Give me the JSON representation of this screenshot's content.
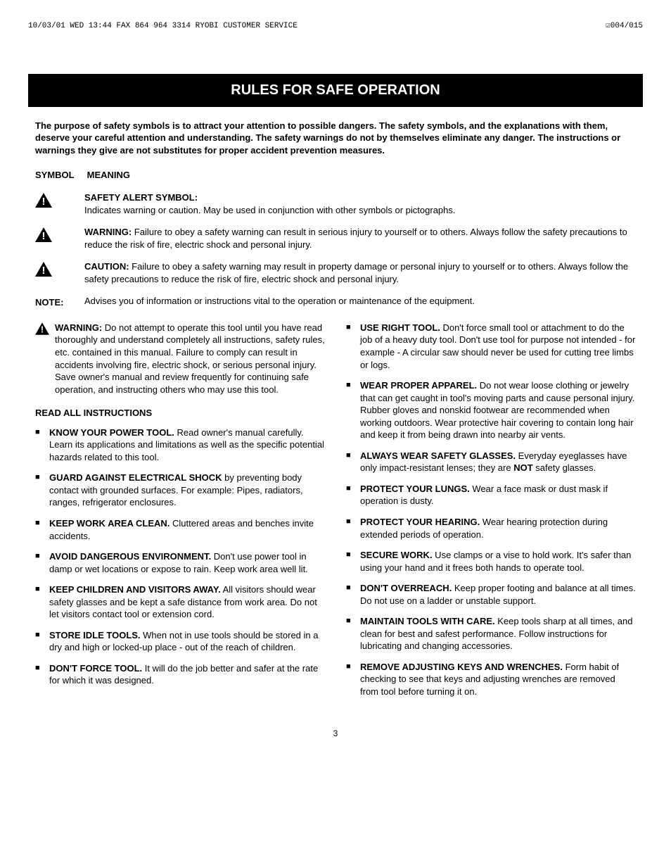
{
  "fax": {
    "left": "10/03/01 WED 13:44    FAX 864 964 3314 RYOBI CUSTOMER SERVICE",
    "right": "☑004/015"
  },
  "title": "RULES FOR SAFE OPERATION",
  "intro": "The purpose of safety symbols is to attract your attention to possible dangers. The safety symbols, and the explanations with them, deserve your careful attention and understanding. The safety warnings do not by themselves eliminate any danger. The instructions or warnings they give are not substitutes for proper accident prevention measures.",
  "headers": {
    "symbol": "SYMBOL",
    "meaning": "MEANING"
  },
  "symbols": {
    "alert_title": "SAFETY ALERT SYMBOL:",
    "alert_body": "Indicates warning or caution. May be used in conjunction with other symbols or pictographs.",
    "warning_label": "WARNING:",
    "warning_body": " Failure to obey a safety warning can result in serious injury to yourself or to others. Always follow the safety precautions to reduce the risk of fire, electric shock and personal injury.",
    "caution_label": "CAUTION:",
    "caution_body": " Failure to obey a safety warning may result in property damage or personal injury to yourself or to others. Always follow the safety precautions to reduce the risk of fire, electric shock and personal injury.",
    "note_label": "NOTE:",
    "note_body": "Advises you of information or instructions vital to the operation or maintenance of the equipment."
  },
  "top_warning": {
    "label": "WARNING:",
    "body": " Do not attempt to operate this tool until you have read thoroughly and understand completely all instructions, safety rules, etc. contained in this manual. Failure to comply can result in accidents involving fire, electric shock, or serious personal injury. Save owner's manual and review frequently for continuing safe operation, and instructing others who may use this tool."
  },
  "read_all": "READ ALL INSTRUCTIONS",
  "left_items": [
    {
      "t": "KNOW YOUR POWER TOOL.",
      "b": " Read owner's manual carefully. Learn its applications and limitations as well as the specific potential hazards related to this tool."
    },
    {
      "t": "GUARD AGAINST ELECTRICAL SHOCK",
      "b": " by preventing body contact with grounded surfaces. For example: Pipes, radiators, ranges, refrigerator enclosures."
    },
    {
      "t": "KEEP WORK AREA CLEAN.",
      "b": " Cluttered areas and benches invite accidents."
    },
    {
      "t": "AVOID DANGEROUS ENVIRONMENT.",
      "b": " Don't use power tool in damp or wet locations or expose to rain. Keep work area well lit."
    },
    {
      "t": "KEEP CHILDREN AND VISITORS AWAY.",
      "b": " All visitors should wear safety glasses and be kept a safe distance from work area. Do not let visitors contact tool or extension cord."
    },
    {
      "t": "STORE IDLE TOOLS.",
      "b": " When not in use tools should be stored in a dry and high or locked-up place - out of the reach of children."
    },
    {
      "t": "DON'T FORCE TOOL.",
      "b": " It will do the job better and safer at the rate for which it was designed."
    }
  ],
  "right_items": [
    {
      "t": "USE RIGHT TOOL.",
      "b": " Don't force small tool or attachment to do the job of a heavy duty tool. Don't use tool for purpose not intended - for example - A circular saw should never be used for cutting tree limbs or logs."
    },
    {
      "t": "WEAR PROPER APPAREL.",
      "b": " Do not wear loose clothing or jewelry that can get caught in tool's moving parts and cause personal injury. Rubber gloves and nonskid footwear are recommended when working outdoors. Wear protective hair covering to contain long hair and keep it from being drawn into nearby air vents."
    },
    {
      "t": "ALWAYS WEAR SAFETY GLASSES.",
      "b": " Everyday eyeglasses have only impact-resistant lenses; they are ",
      "t2": "NOT",
      "b2": " safety glasses."
    },
    {
      "t": "PROTECT YOUR LUNGS.",
      "b": " Wear a face mask or dust mask if operation is dusty."
    },
    {
      "t": "PROTECT YOUR HEARING.",
      "b": " Wear hearing protection during extended periods of operation."
    },
    {
      "t": "SECURE WORK.",
      "b": " Use clamps or a vise to hold work. It's safer than using your hand and it frees both hands to operate tool."
    },
    {
      "t": "DON'T OVERREACH.",
      "b": " Keep proper footing and balance at all times. Do not use on a ladder or unstable support."
    },
    {
      "t": "MAINTAIN TOOLS WITH CARE.",
      "b": " Keep tools sharp at all times, and clean for best and safest performance. Follow instructions for lubricating and changing accessories."
    },
    {
      "t": "REMOVE ADJUSTING KEYS AND WRENCHES.",
      "b": " Form habit of checking to see that keys and adjusting wrenches are removed from tool before turning it on."
    }
  ],
  "page_num": "3"
}
